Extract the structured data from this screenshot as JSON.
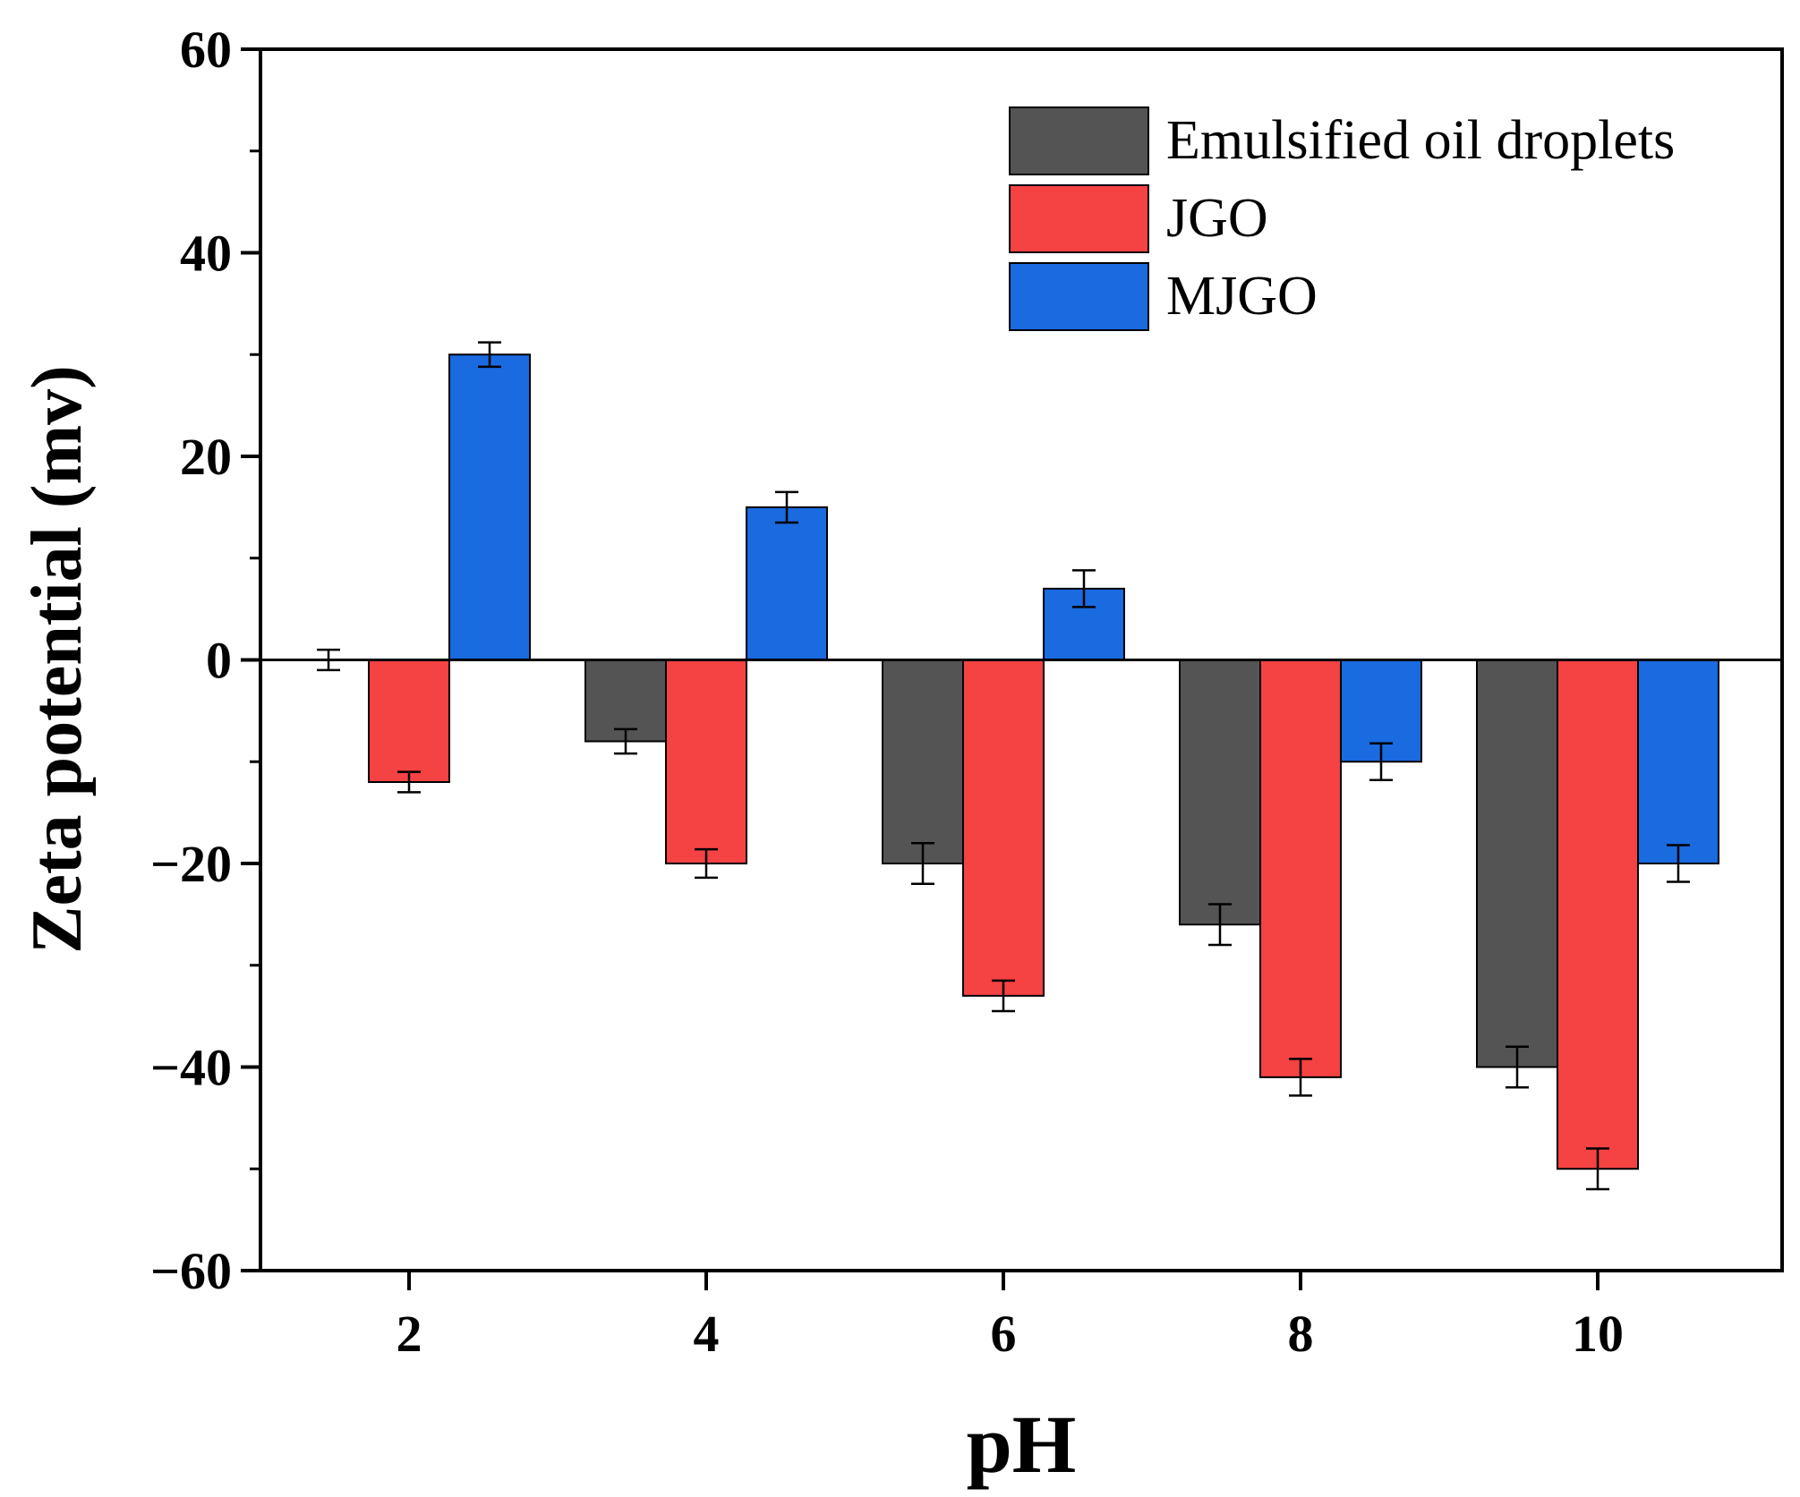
{
  "chart_data": {
    "type": "bar",
    "title": "",
    "xlabel": "pH",
    "ylabel": "Zeta potential (mv)",
    "categories": [
      "2",
      "4",
      "6",
      "8",
      "10"
    ],
    "ylim": [
      -60,
      60
    ],
    "yticks": [
      60,
      40,
      20,
      0,
      -20,
      -40,
      -60
    ],
    "ytick_labels": [
      "60",
      "40",
      "20",
      "0",
      "−20",
      "−40",
      "−60"
    ],
    "legend_position": "top-right",
    "series": [
      {
        "name": "Emulsified oil droplets",
        "color": "#545454",
        "values": [
          0,
          -8,
          -20,
          -26,
          -40
        ],
        "errors": [
          1.0,
          1.2,
          2.0,
          2.0,
          2.0
        ]
      },
      {
        "name": "JGO",
        "color": "#f54242",
        "values": [
          -12,
          -20,
          -33,
          -41,
          -50
        ],
        "errors": [
          1.0,
          1.4,
          1.5,
          1.8,
          2.0
        ]
      },
      {
        "name": "MJGO",
        "color": "#1a6ae0",
        "values": [
          30,
          15,
          7,
          -10,
          -20
        ],
        "errors": [
          1.2,
          1.5,
          1.8,
          1.8,
          1.8
        ]
      }
    ]
  }
}
